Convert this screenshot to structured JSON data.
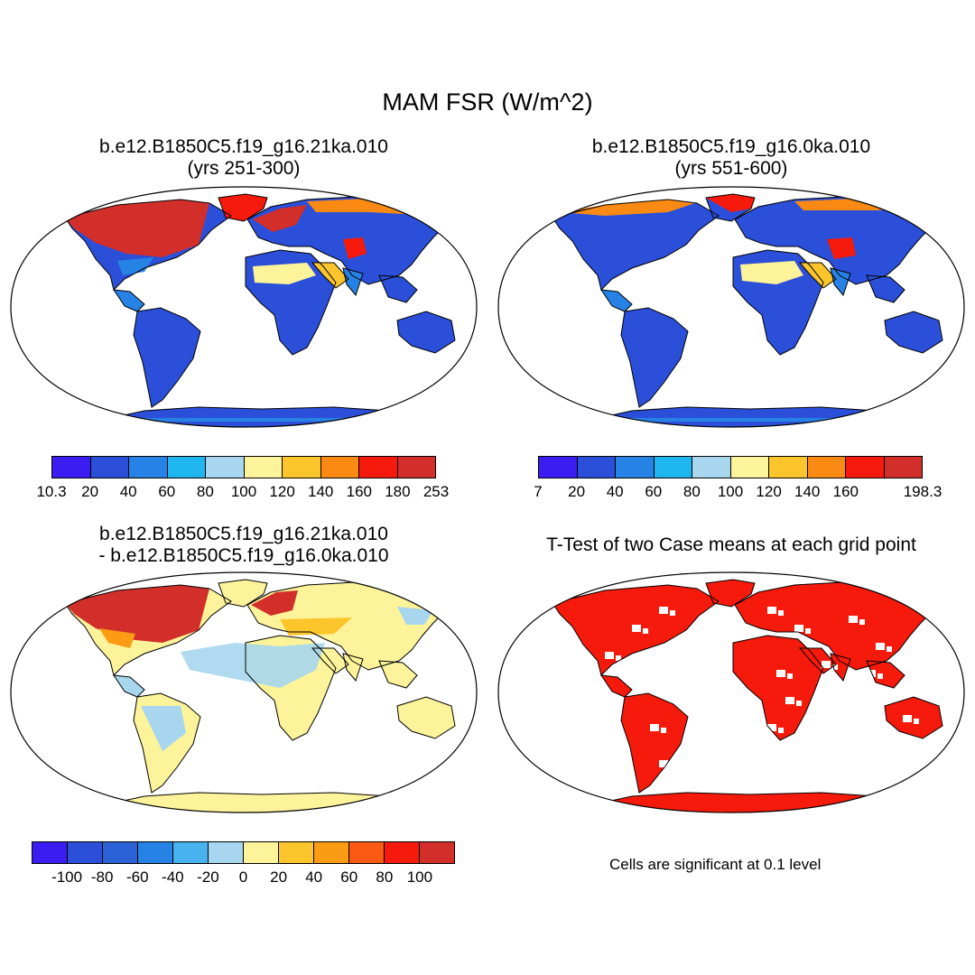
{
  "title": "MAM FSR (W/m^2)",
  "panels": {
    "top_left": {
      "line1": "b.e12.B1850C5.f19_g16.21ka.010",
      "line2": "(yrs 251-300)"
    },
    "top_right": {
      "line1": "b.e12.B1850C5.f19_g16.0ka.010",
      "line2": "(yrs 551-600)"
    },
    "bottom_left": {
      "line1": "b.e12.B1850C5.f19_g16.21ka.010",
      "line2": "- b.e12.B1850C5.f19_g16.0ka.010"
    },
    "bottom_right": {
      "line1": "T-Test of two Case means at each grid point"
    }
  },
  "legends": {
    "top_left": {
      "colors": [
        "#3b1df2",
        "#2b4fd8",
        "#2782e6",
        "#1fb5ef",
        "#a7d6ee",
        "#fdf39a",
        "#fdc52c",
        "#fb8a14",
        "#f51a0c",
        "#d22f2a"
      ],
      "labels": [
        "10.3",
        "20",
        "40",
        "60",
        "80",
        "100",
        "120",
        "140",
        "160",
        "180",
        "253"
      ]
    },
    "top_right": {
      "colors": [
        "#3b1df2",
        "#2b4fd8",
        "#2782e6",
        "#1fb5ef",
        "#a7d6ee",
        "#fdf39a",
        "#fdc52c",
        "#fb8a14",
        "#f51a0c",
        "#d22f2a"
      ],
      "labels": [
        "7",
        "20",
        "40",
        "60",
        "80",
        "100",
        "120",
        "140",
        "160",
        "",
        "198.3"
      ]
    },
    "bottom_left": {
      "colors": [
        "#3b1df2",
        "#2b4fd8",
        "#2a62d6",
        "#2782e6",
        "#47b2ee",
        "#a7d6ee",
        "#fdf39a",
        "#fdc52c",
        "#fb9c14",
        "#fb5a14",
        "#f51a0c",
        "#d22f2a"
      ],
      "labels": [
        "-100",
        "-80",
        "-60",
        "-40",
        "-20",
        "0",
        "20",
        "40",
        "60",
        "80",
        "100"
      ]
    }
  },
  "significance_note": "Cells are significant at 0.1 level",
  "map_colors": {
    "ocean": "#ffffff",
    "outline": "#000000",
    "significant": "#f51a0c"
  }
}
